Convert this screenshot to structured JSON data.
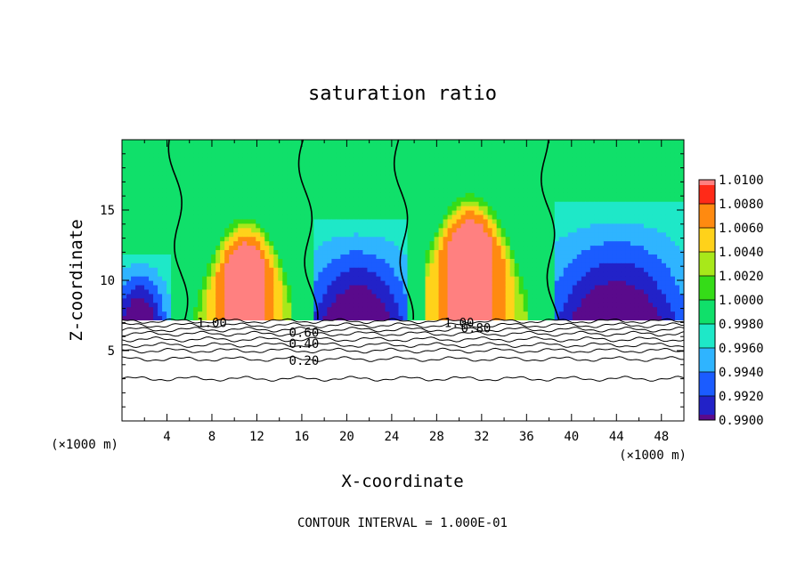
{
  "chart_data": {
    "type": "heatmap",
    "title": "saturation ratio",
    "xlabel": "X-coordinate",
    "ylabel": "Z-coordinate",
    "x_unit_left": "(×1000 m)",
    "x_unit_right": "(×1000 m)",
    "footer": "CONTOUR INTERVAL = 1.000E-01",
    "xlim": [
      0,
      50
    ],
    "ylim": [
      0,
      20
    ],
    "x_ticks": [
      4,
      8,
      12,
      16,
      20,
      24,
      28,
      32,
      36,
      40,
      44,
      48
    ],
    "y_ticks": [
      5,
      10,
      15
    ],
    "colorbar": {
      "levels": [
        "0.9900",
        "0.9920",
        "0.9940",
        "0.9960",
        "0.9980",
        "1.0000",
        "1.0020",
        "1.0040",
        "1.0060",
        "1.0080",
        "1.0100"
      ],
      "colors": [
        "#5a0a8c",
        "#2222c8",
        "#1b5cff",
        "#2fb4ff",
        "#1ee8c8",
        "#10e06a",
        "#35dc18",
        "#a8e81a",
        "#ffd21a",
        "#ff8a10",
        "#ff2a18",
        "#ff8080"
      ]
    },
    "contour_labels": [
      {
        "text": "1.00",
        "x": 8.0,
        "y": 7.0
      },
      {
        "text": "0.60",
        "x": 16.2,
        "y": 6.3
      },
      {
        "text": "0.40",
        "x": 16.2,
        "y": 5.5
      },
      {
        "text": "0.20",
        "x": 16.2,
        "y": 4.3
      },
      {
        "text": "1.00",
        "x": 30.0,
        "y": 7.0
      },
      {
        "text": "0.80",
        "x": 31.5,
        "y": 6.6
      }
    ],
    "cloud_base_z": 7.2,
    "saturated_columns": [
      [
        5.5,
        17.0
      ],
      [
        25.5,
        38.5
      ]
    ],
    "supersaturation_cores": [
      {
        "x_center": 11,
        "x_halfwidth": 3.6,
        "z_top": 13.6,
        "peak": 1.01
      },
      {
        "x_center": 31,
        "x_halfwidth": 4.2,
        "z_top": 15.2,
        "peak": 1.01
      }
    ],
    "subsaturation_zones": [
      {
        "x_center": 1.5,
        "x_halfwidth": 2.2,
        "z_top": 12.0,
        "min": 0.99
      },
      {
        "x_center": 21.0,
        "x_halfwidth": 4.5,
        "z_top": 14.5,
        "min": 0.99
      },
      {
        "x_center": 44.0,
        "x_halfwidth": 6.0,
        "z_top": 15.5,
        "min": 0.99
      }
    ],
    "contour_levels_subcloud": [
      0.2,
      0.3,
      0.4,
      0.5,
      0.6,
      0.7,
      0.8,
      0.9,
      1.0
    ],
    "contour_heights_subcloud": [
      3.0,
      4.4,
      5.0,
      5.4,
      5.8,
      6.2,
      6.5,
      6.8,
      7.1
    ],
    "grid": false,
    "legend": "colorbar right"
  }
}
